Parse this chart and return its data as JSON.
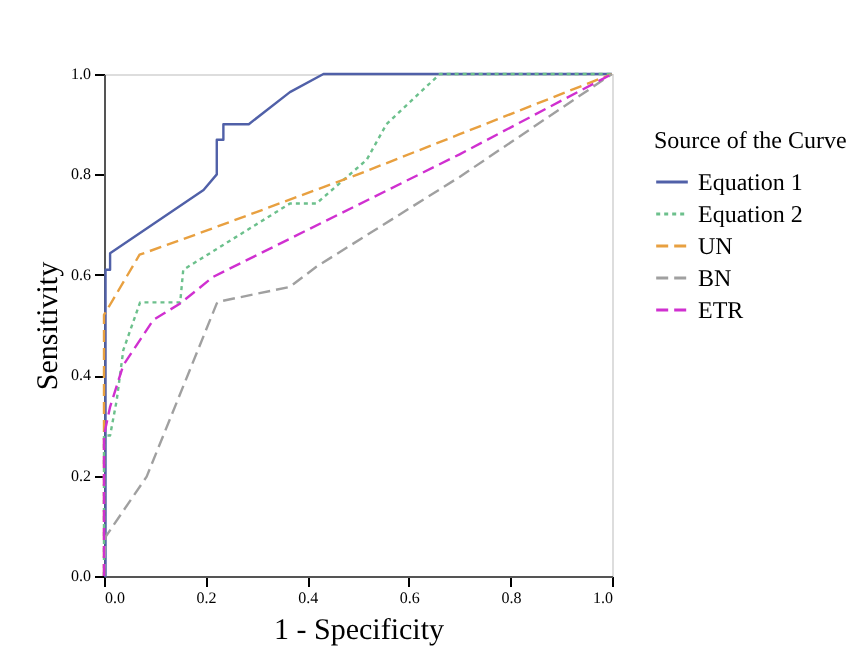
{
  "chart_data": {
    "type": "line",
    "xlabel": "1 - Specificity",
    "ylabel": "Sensitivity",
    "legend_title": "Source of the Curve",
    "legend": "right",
    "grid": false,
    "xlim": [
      0,
      1
    ],
    "ylim": [
      0,
      1
    ],
    "xticks": [
      {
        "value": 0,
        "label": "0.0"
      },
      0.2,
      0.4,
      0.6,
      0.8,
      {
        "value": 1,
        "label": "1.0"
      }
    ],
    "yticks": [
      {
        "value": 0,
        "label": "0.0"
      },
      0.2,
      0.4,
      0.6,
      0.8,
      {
        "value": 1,
        "label": "1.0"
      }
    ],
    "series": [
      {
        "name": "Equation 1",
        "color": "#5060a8",
        "line_style": "solid",
        "x": [
          0,
          0.003,
          0.003,
          0.012,
          0.012,
          0.196,
          0.222,
          0.222,
          0.235,
          0.235,
          0.285,
          0.366,
          0.432,
          1
        ],
        "values": [
          0,
          0,
          0.61,
          0.61,
          0.643,
          0.769,
          0.8,
          0.869,
          0.869,
          0.9,
          0.9,
          0.964,
          1,
          1
        ]
      },
      {
        "name": "Equation 2",
        "color": "#6cc08c",
        "line_style": "dotted",
        "x": [
          0,
          0,
          0.012,
          0.025,
          0.038,
          0.071,
          0.15,
          0.156,
          0.366,
          0.418,
          0.517,
          0.556,
          0.661,
          1
        ],
        "values": [
          0,
          0.28,
          0.28,
          0.35,
          0.45,
          0.545,
          0.545,
          0.61,
          0.742,
          0.742,
          0.829,
          0.9,
          1,
          1
        ]
      },
      {
        "name": "UN",
        "color": "#e8a040",
        "line_style": "dashed",
        "x": [
          0,
          0,
          0,
          0.07,
          0.18,
          0.5,
          0.7,
          1
        ],
        "values": [
          0,
          0.3,
          0.52,
          0.64,
          0.68,
          0.8,
          0.88,
          1
        ]
      },
      {
        "name": "BN",
        "color": "#a0a0a0",
        "line_style": "dashed",
        "x": [
          0,
          0.003,
          0.084,
          0.222,
          0.228,
          0.366,
          0.418,
          0.7,
          1
        ],
        "values": [
          0,
          0.078,
          0.198,
          0.543,
          0.547,
          0.576,
          0.616,
          0.795,
          1
        ]
      },
      {
        "name": "ETR",
        "color": "#d030d0",
        "line_style": "dashed",
        "x": [
          0,
          0,
          0.012,
          0.038,
          0.097,
          0.15,
          0.215,
          0.7,
          1
        ],
        "values": [
          0,
          0.28,
          0.337,
          0.42,
          0.51,
          0.543,
          0.596,
          0.84,
          1
        ]
      }
    ]
  }
}
